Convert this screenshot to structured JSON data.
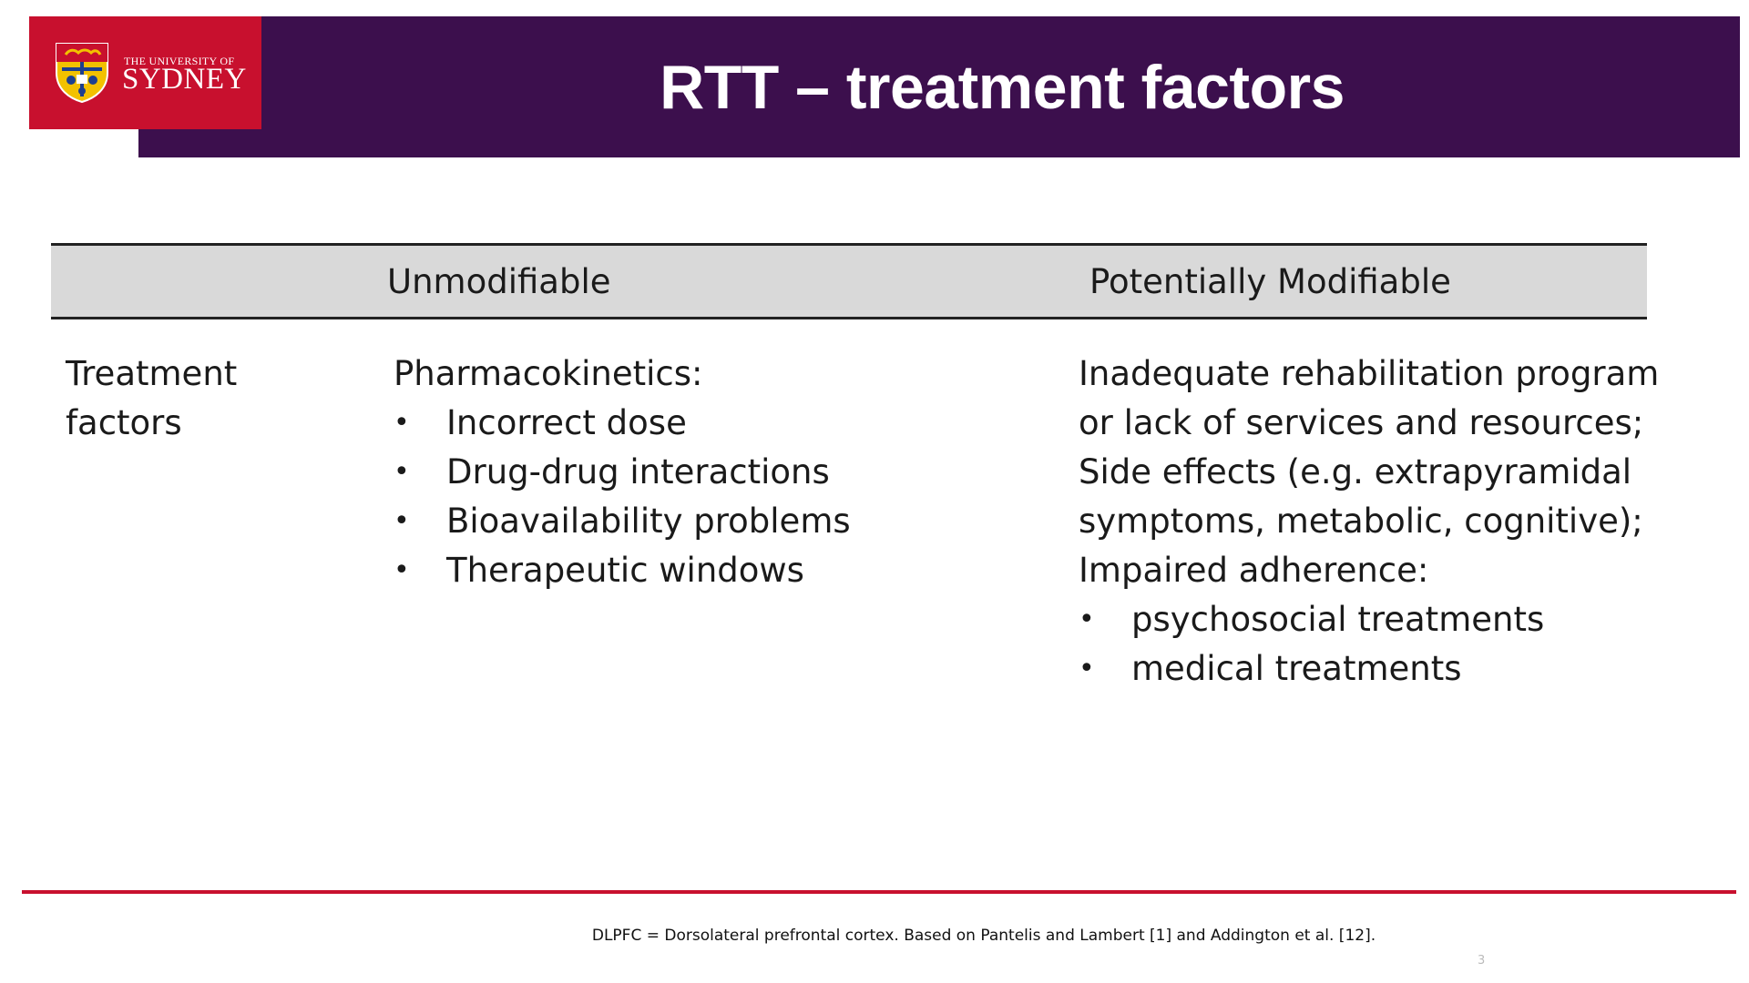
{
  "logo": {
    "line1": "THE UNIVERSITY OF",
    "line2": "SYDNEY"
  },
  "title": "RTT – treatment factors",
  "table": {
    "headers": {
      "unmodifiable": "Unmodifiable",
      "modifiable": "Potentially Modifiable"
    },
    "row_label": [
      "Treatment",
      "factors"
    ],
    "unmodifiable": {
      "heading": "Pharmacokinetics:",
      "bullets": [
        "Incorrect dose",
        "Drug-drug interactions",
        "Bioavailability problems",
        "Therapeutic windows"
      ]
    },
    "modifiable": {
      "lines": [
        "Inadequate rehabilitation program",
        "or lack of services and resources;",
        "Side effects (e.g. extrapyramidal",
        "symptoms, metabolic, cognitive);",
        "Impaired adherence:"
      ],
      "bullets": [
        "psychosocial treatments",
        "medical treatments"
      ]
    }
  },
  "footnote": "DLPFC = Dorsolateral prefrontal cortex. Based on Pantelis and Lambert [1] and Addington et al. [12].",
  "page_number": "3",
  "colors": {
    "header_purple": "#3c0f4d",
    "brand_red": "#c8102e",
    "table_head_gray": "#d9d9d9"
  }
}
